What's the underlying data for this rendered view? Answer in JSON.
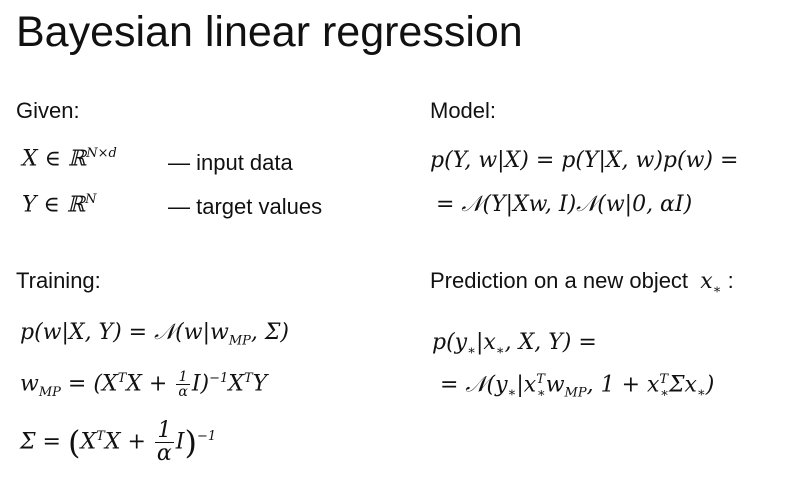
{
  "title": "Bayesian linear regression",
  "given": {
    "heading": "Given:",
    "rows": [
      {
        "math": "X ∈ ℝ",
        "sup": "N×d",
        "desc": "— input data"
      },
      {
        "math": "Y ∈ ℝ",
        "sup": "N",
        "desc": "— target values"
      }
    ]
  },
  "model": {
    "heading": "Model:",
    "line1": "p(Y, w|X) = p(Y|X, w)p(w) =",
    "line2": "= 𝒩(Y|Xw, I)𝒩(w|0, αI)"
  },
  "training": {
    "heading": "Training:",
    "eq1": "p(w|X, Y) = 𝒩(w|w",
    "eq1_sub": "MP",
    "eq1_tail": ", Σ)",
    "eq2_lhs": "w",
    "eq2_lhs_sub": "MP",
    "eq2_a": " = (X",
    "eq2_sup1": "T",
    "eq2_b": "X + ",
    "eq2_frac_num": "1",
    "eq2_frac_den": "α",
    "eq2_c": "I)",
    "eq2_sup2": "−1",
    "eq2_d": "X",
    "eq2_sup3": "T",
    "eq2_e": "Y",
    "eq3_lhs": "Σ = ",
    "eq3_open": "(",
    "eq3_a": "X",
    "eq3_sup1": "T",
    "eq3_b": "X + ",
    "eq3_frac_num": "1",
    "eq3_frac_den": "α",
    "eq3_c": "I",
    "eq3_close": ")",
    "eq3_sup2": "−1"
  },
  "prediction": {
    "heading": "Prediction on a new object",
    "heading_var": "x",
    "heading_var_sub": "∗",
    "heading_colon": " :",
    "line1_a": "p(y",
    "line1_sub1": "∗",
    "line1_b": "|x",
    "line1_sub2": "∗",
    "line1_c": ", X, Y) =",
    "line2_a": "= 𝒩(y",
    "line2_sub1": "∗",
    "line2_b": "|x",
    "line2_sup1": "T",
    "line2_sub2": "∗",
    "line2_c": "w",
    "line2_sub3": "MP",
    "line2_d": ", 1 + x",
    "line2_sup2": "T",
    "line2_sub4": "∗",
    "line2_e": "Σx",
    "line2_sub5": "∗",
    "line2_f": ")"
  }
}
